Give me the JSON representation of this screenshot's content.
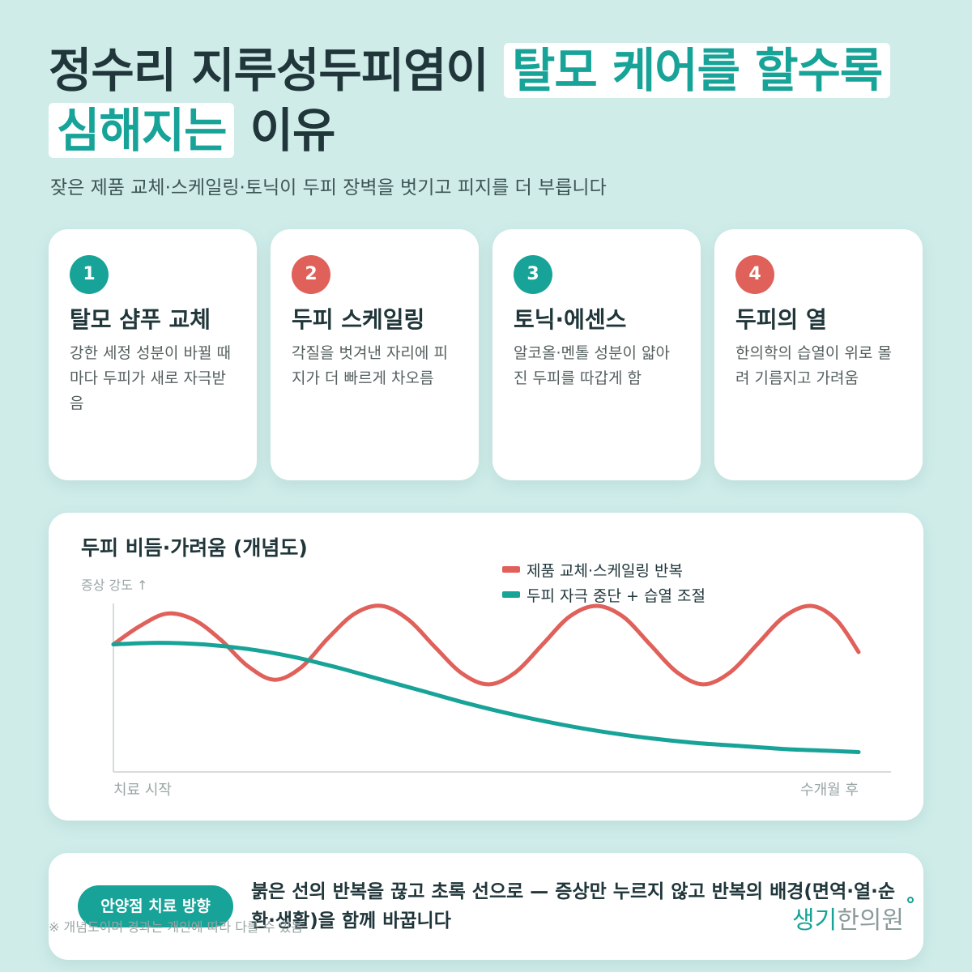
{
  "header": {
    "title_part1": "정수리 지루성두피염이",
    "title_highlight": "탈모 케어를 할수록 심해지는",
    "title_part2": "이유",
    "subtitle": "잦은 제품 교체·스케일링·토닉이 두피 장벽을 벗기고 피지를 더 부릅니다"
  },
  "cards": [
    {
      "num": "1",
      "title": "탈모 샴푸 교체",
      "desc": "강한 세정 성분이 바뀔 때마다 두피가 새로 자극받음",
      "color": "#17a398"
    },
    {
      "num": "2",
      "title": "두피 스케일링",
      "desc": "각질을 벗겨낸 자리에 피지가 더 빠르게 차오름",
      "color": "#e0605a"
    },
    {
      "num": "3",
      "title": "토닉·에센스",
      "desc": "알코올·멘톨 성분이 얇아진 두피를 따갑게 함",
      "color": "#17a398"
    },
    {
      "num": "4",
      "title": "두피의 열",
      "desc": "한의학의 습열이 위로 몰려 기름지고 가려움",
      "color": "#e0605a"
    }
  ],
  "chart_data": {
    "type": "line",
    "title": "두피 비듬·가려움 (개념도)",
    "ylabel": "증상 강도 ↑",
    "xlabel_start": "치료 시작",
    "xlabel_end": "수개월 후",
    "legend_position": "top-right",
    "xlim": [
      0,
      1
    ],
    "ylim": [
      0,
      1
    ],
    "series": [
      {
        "name": "제품 교체·스케일링 반복",
        "color": "#e0605a",
        "points": [
          [
            0.0,
            0.75
          ],
          [
            0.036,
            0.87
          ],
          [
            0.072,
            0.95
          ],
          [
            0.108,
            0.91
          ],
          [
            0.144,
            0.78
          ],
          [
            0.18,
            0.61
          ],
          [
            0.216,
            0.52
          ],
          [
            0.252,
            0.6
          ],
          [
            0.288,
            0.79
          ],
          [
            0.324,
            0.95
          ],
          [
            0.36,
            1.0
          ],
          [
            0.396,
            0.91
          ],
          [
            0.432,
            0.73
          ],
          [
            0.468,
            0.56
          ],
          [
            0.504,
            0.49
          ],
          [
            0.54,
            0.57
          ],
          [
            0.576,
            0.75
          ],
          [
            0.612,
            0.93
          ],
          [
            0.648,
            1.0
          ],
          [
            0.684,
            0.93
          ],
          [
            0.72,
            0.75
          ],
          [
            0.756,
            0.57
          ],
          [
            0.792,
            0.49
          ],
          [
            0.828,
            0.57
          ],
          [
            0.864,
            0.75
          ],
          [
            0.9,
            0.93
          ],
          [
            0.936,
            1.0
          ],
          [
            0.97,
            0.91
          ],
          [
            1.0,
            0.7
          ]
        ]
      },
      {
        "name": "두피 자극 중단 + 습열 조절",
        "color": "#17a398",
        "points": [
          [
            0.0,
            0.75
          ],
          [
            0.06,
            0.76
          ],
          [
            0.12,
            0.75
          ],
          [
            0.18,
            0.72
          ],
          [
            0.24,
            0.67
          ],
          [
            0.3,
            0.6
          ],
          [
            0.36,
            0.52
          ],
          [
            0.42,
            0.44
          ],
          [
            0.48,
            0.36
          ],
          [
            0.54,
            0.29
          ],
          [
            0.6,
            0.23
          ],
          [
            0.66,
            0.18
          ],
          [
            0.72,
            0.14
          ],
          [
            0.78,
            0.11
          ],
          [
            0.84,
            0.09
          ],
          [
            0.9,
            0.07
          ],
          [
            0.95,
            0.06
          ],
          [
            1.0,
            0.05
          ]
        ]
      }
    ]
  },
  "bottom": {
    "pill": "안양점 치료 방향",
    "message": "붉은 선의 반복을 끊고 초록 선으로 — 증상만 누르지 않고 반복의 배경(면역·열·순환·생활)을 함께 바꿉니다",
    "footnote": "※ 개념도이며 경과는 개인에 따라 다를 수 있음",
    "brand1": "생기",
    "brand2": "한의원"
  }
}
